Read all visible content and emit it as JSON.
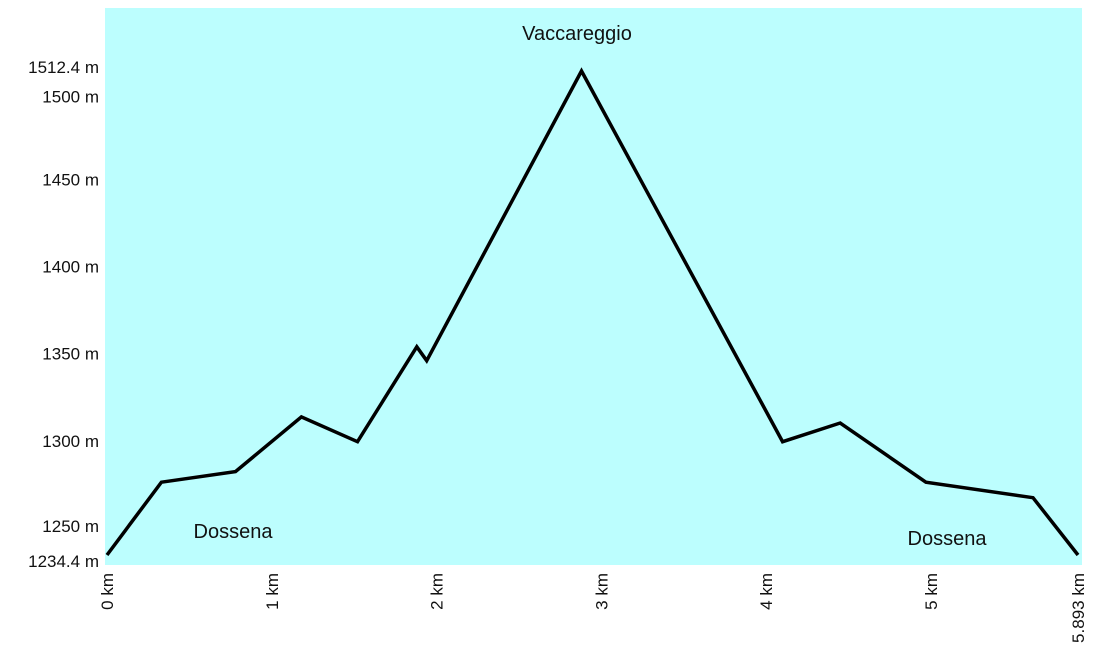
{
  "chart_data": {
    "type": "area",
    "title": "",
    "xlabel": "",
    "ylabel": "",
    "xlim": [
      0,
      5.893
    ],
    "ylim": [
      1234.4,
      1512.4
    ],
    "grid": false,
    "y_ticks": [
      {
        "value": 1512.4,
        "label": "1512.4 m"
      },
      {
        "value": 1500,
        "label": "1500 m"
      },
      {
        "value": 1450,
        "label": "1450 m"
      },
      {
        "value": 1400,
        "label": "1400 m"
      },
      {
        "value": 1350,
        "label": "1350 m"
      },
      {
        "value": 1300,
        "label": "1300 m"
      },
      {
        "value": 1250,
        "label": "1250 m"
      },
      {
        "value": 1234.4,
        "label": "1234.4 m"
      }
    ],
    "x_ticks": [
      {
        "value": 0,
        "label": "0 km"
      },
      {
        "value": 1,
        "label": "1 km"
      },
      {
        "value": 2,
        "label": "2 km"
      },
      {
        "value": 3,
        "label": "3 km"
      },
      {
        "value": 4,
        "label": "4 km"
      },
      {
        "value": 5,
        "label": "5 km"
      },
      {
        "value": 5.893,
        "label": "5.893 km"
      }
    ],
    "series": [
      {
        "x": [
          0,
          0.33,
          0.78,
          1.18,
          1.52,
          1.88,
          1.94,
          2.88,
          4.1,
          4.45,
          4.97,
          5.62,
          5.893
        ],
        "y": [
          1234.4,
          1276.2,
          1282.3,
          1313.7,
          1299.5,
          1354,
          1346,
          1512.4,
          1299.5,
          1310.2,
          1276.2,
          1267.3,
          1234.4
        ]
      }
    ],
    "annotations": [
      {
        "text": "Vaccareggio",
        "x": 2.88,
        "y": 1512.4
      },
      {
        "text": "Dossena",
        "x": 0.33,
        "y": 1250
      },
      {
        "text": "Dossena",
        "x": 5.3,
        "y": 1250
      }
    ],
    "colors": {
      "background": "#bcfefe",
      "line": "#000000"
    }
  }
}
